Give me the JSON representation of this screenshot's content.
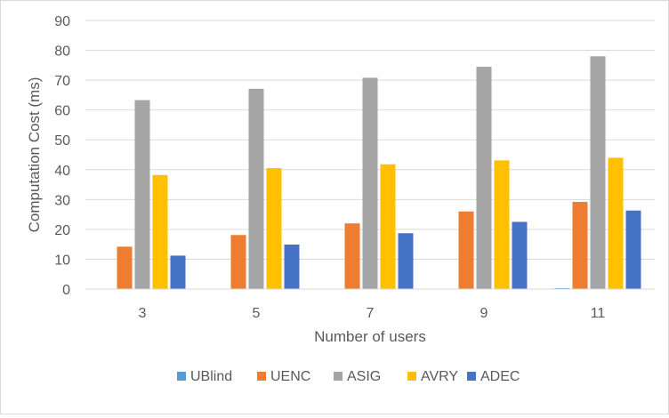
{
  "chart_data": {
    "type": "bar",
    "title": "",
    "xlabel": "Number of users",
    "ylabel": "Computation Cost (ms)",
    "ylim": [
      0,
      90
    ],
    "yticks": [
      0,
      10,
      20,
      30,
      40,
      50,
      60,
      70,
      80,
      90
    ],
    "grid": true,
    "legend_position": "bottom",
    "categories": [
      "3",
      "5",
      "7",
      "9",
      "11"
    ],
    "series": [
      {
        "name": "UBlind",
        "color": "#5b9bd5",
        "values": [
          0.1,
          0.1,
          0.1,
          0.1,
          0.3
        ]
      },
      {
        "name": "UENC",
        "color": "#ed7d31",
        "values": [
          14.2,
          18.1,
          22.0,
          26.0,
          29.2
        ]
      },
      {
        "name": "ASIG",
        "color": "#a5a5a5",
        "values": [
          63.3,
          67.1,
          70.8,
          74.5,
          78.0
        ]
      },
      {
        "name": "AVRY",
        "color": "#ffc000",
        "values": [
          38.2,
          40.5,
          41.8,
          43.1,
          44.0
        ]
      },
      {
        "name": "ADEC",
        "color": "#4472c4",
        "values": [
          11.2,
          14.9,
          18.7,
          22.5,
          26.3
        ]
      }
    ]
  }
}
